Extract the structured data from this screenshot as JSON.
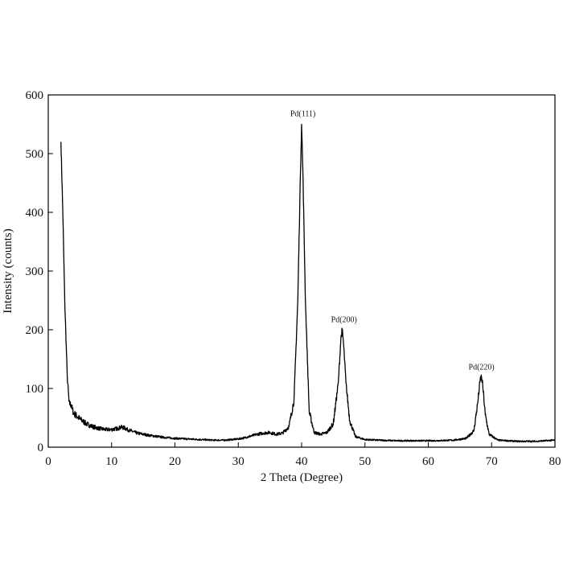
{
  "chart_data": {
    "type": "line",
    "xlabel": "2 Theta (Degree)",
    "ylabel": "Intensity (counts)",
    "xlim": [
      0,
      80
    ],
    "ylim": [
      0,
      600
    ],
    "xticks": [
      0,
      10,
      20,
      30,
      40,
      50,
      60,
      70,
      80
    ],
    "yticks": [
      0,
      100,
      200,
      300,
      400,
      500,
      600
    ],
    "grid": false,
    "legend": "none",
    "line_color": "#000000",
    "series": [
      {
        "x": [
          2.0,
          2.3,
          2.6,
          3.0,
          3.3,
          3.6,
          4.0,
          5.0,
          6.0,
          7.0,
          8.0,
          9.0,
          10.0,
          11.0,
          11.5,
          12.0,
          12.5,
          13.0,
          14.0,
          15.0,
          16.0,
          18.0,
          20.0,
          22.0,
          24.0,
          26.0,
          28.0,
          30.0,
          31.0,
          32.0,
          33.0,
          34.0,
          35.0,
          36.0,
          37.0,
          38.0,
          38.8,
          39.4,
          39.8,
          40.0,
          40.2,
          40.6,
          41.2,
          42.0,
          43.0,
          44.0,
          45.0,
          45.8,
          46.2,
          46.4,
          46.6,
          47.0,
          47.6,
          48.5,
          50.0,
          52.0,
          55.0,
          58.0,
          61.0,
          64.0,
          66.0,
          67.2,
          67.8,
          68.2,
          68.4,
          68.6,
          69.0,
          69.6,
          71.0,
          74.0,
          77.0,
          80.0
        ],
        "y": [
          520,
          400,
          250,
          120,
          75,
          72,
          58,
          48,
          40,
          35,
          32,
          30,
          30,
          32,
          34,
          33,
          30,
          28,
          24,
          22,
          20,
          17,
          15,
          14,
          13,
          12,
          12,
          14,
          16,
          19,
          22,
          24,
          25,
          22,
          24,
          35,
          80,
          250,
          460,
          550,
          470,
          250,
          60,
          25,
          22,
          25,
          40,
          110,
          185,
          200,
          180,
          110,
          45,
          18,
          13,
          12,
          11,
          11,
          11,
          12,
          15,
          28,
          75,
          115,
          120,
          105,
          55,
          22,
          12,
          10,
          10,
          12
        ]
      }
    ],
    "annotations": [
      {
        "text": "Pd(111)",
        "x": 40.2,
        "y": 553
      },
      {
        "text": "Pd(200)",
        "x": 46.7,
        "y": 202
      },
      {
        "text": "Pd(220)",
        "x": 68.4,
        "y": 121
      }
    ]
  }
}
